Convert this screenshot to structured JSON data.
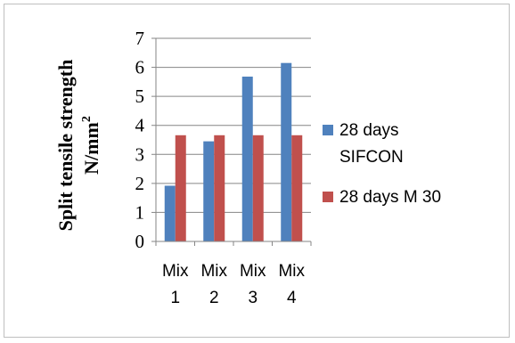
{
  "chart_data": {
    "type": "bar",
    "categories": [
      [
        "Mix",
        "1"
      ],
      [
        "Mix",
        "2"
      ],
      [
        "Mix",
        "3"
      ],
      [
        "Mix",
        "4"
      ]
    ],
    "series": [
      {
        "name": [
          "28 days",
          "SIFCON"
        ],
        "color": "#4f81bd",
        "values": [
          1.92,
          3.45,
          5.68,
          6.15
        ]
      },
      {
        "name": [
          "28 days M 30"
        ],
        "color": "#c0504d",
        "values": [
          3.66,
          3.66,
          3.66,
          3.66
        ]
      }
    ],
    "ylabel": [
      "Split tensile strength",
      "N/mm"
    ],
    "ylabel_superscript": "2",
    "yticks": [
      0,
      1,
      2,
      3,
      4,
      5,
      6,
      7
    ],
    "ylim": [
      0,
      7
    ],
    "grid": true,
    "legend_position": "right"
  }
}
